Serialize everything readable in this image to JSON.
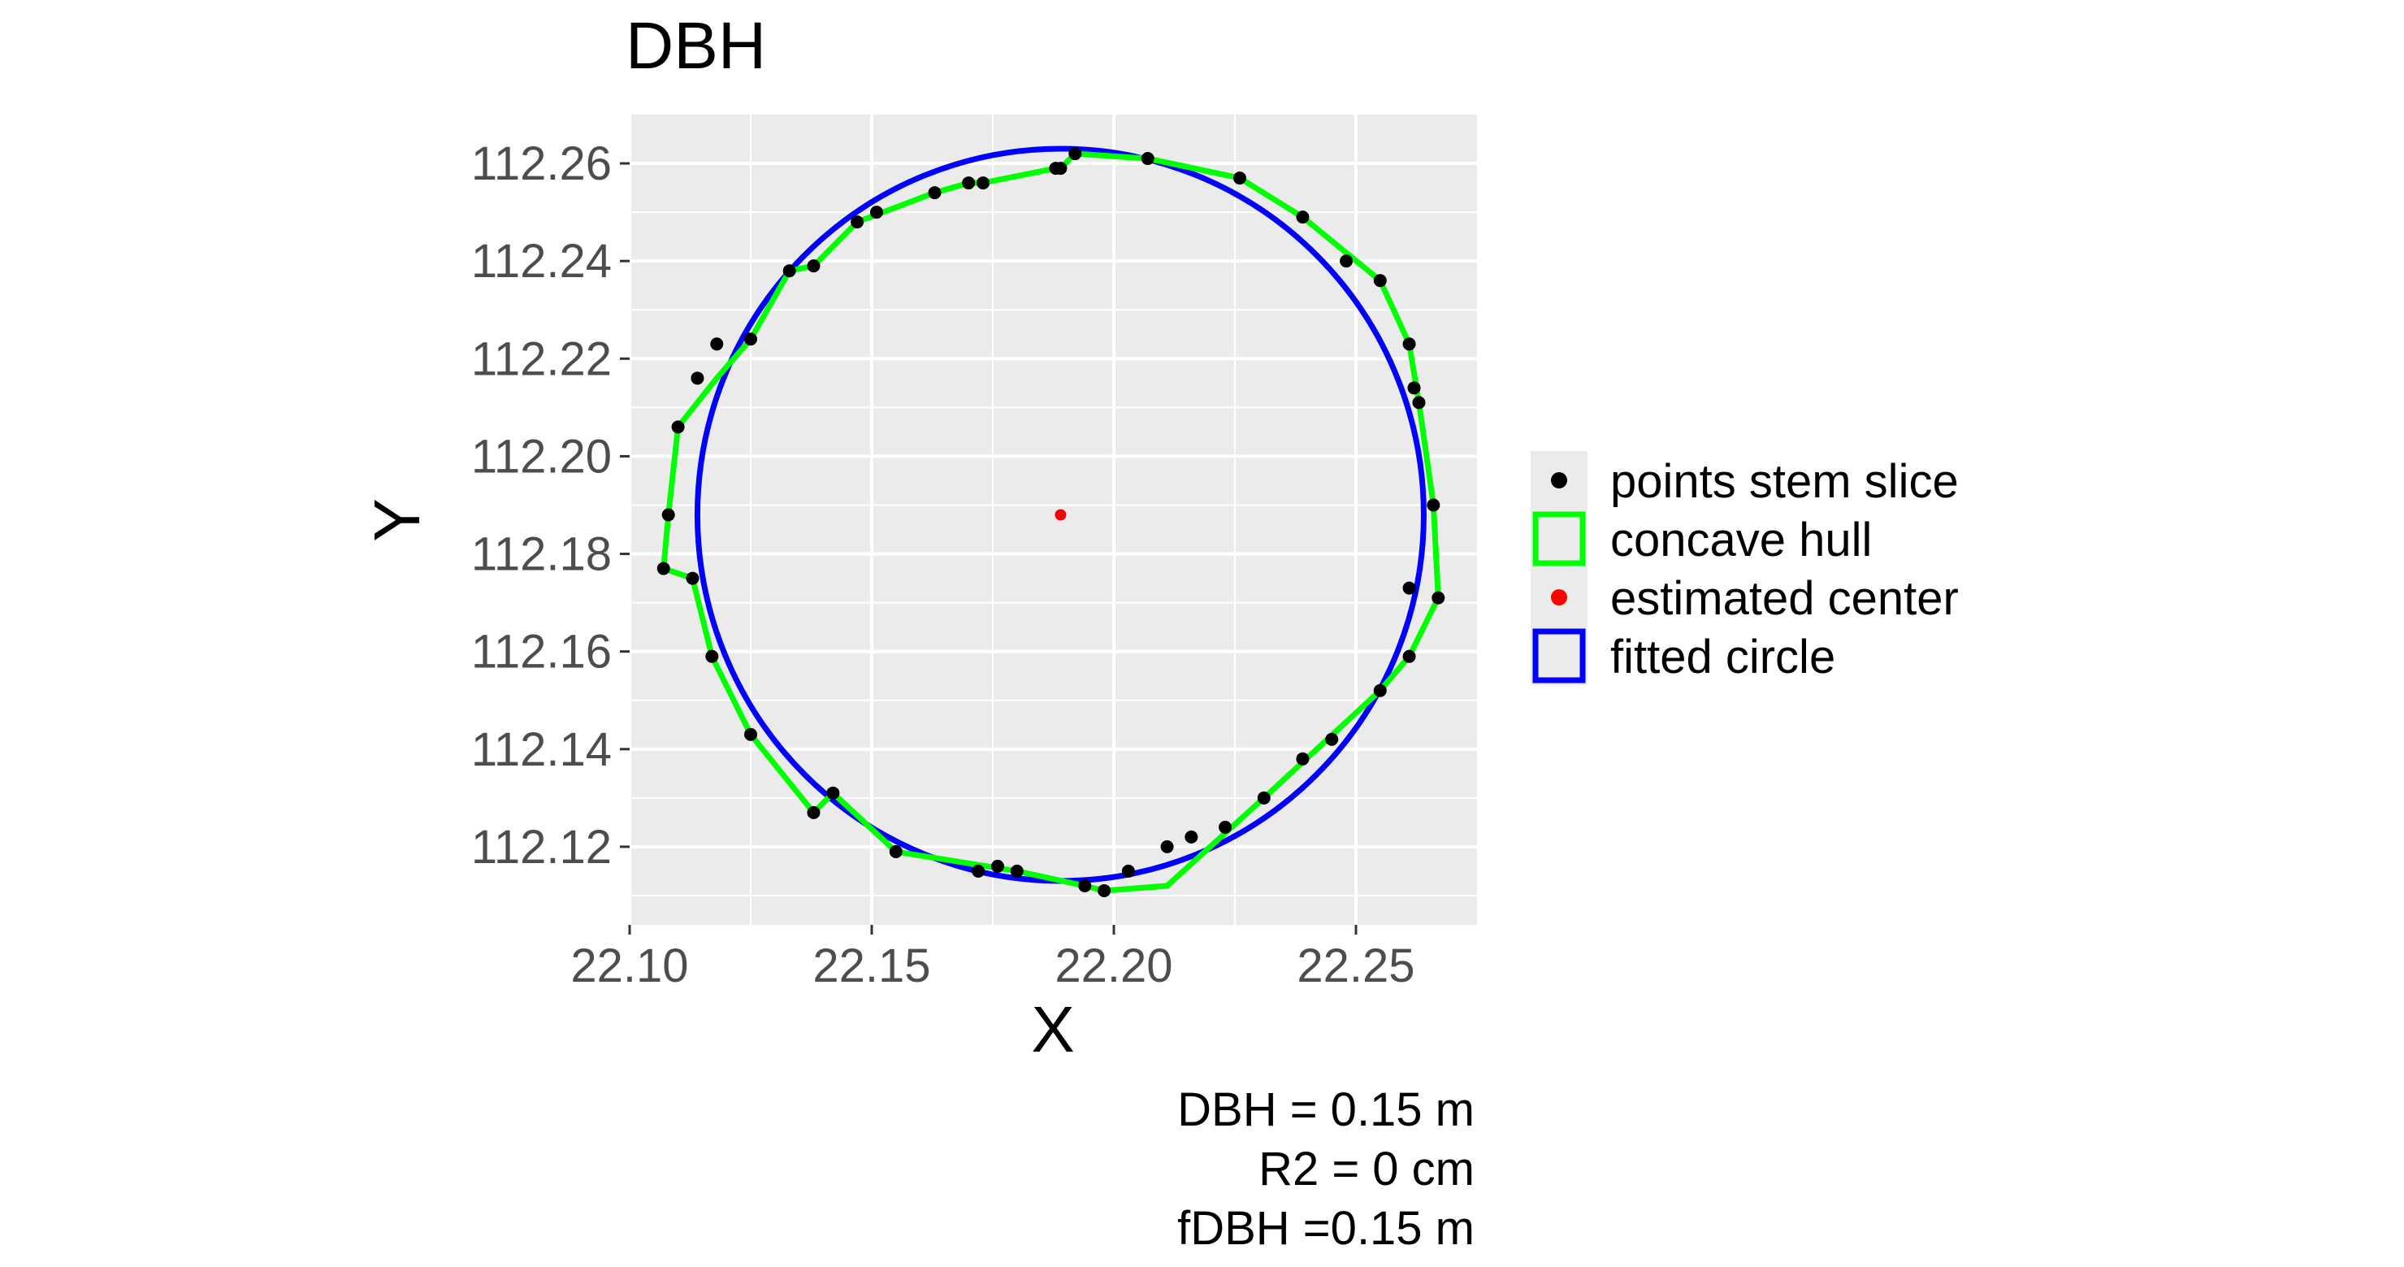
{
  "chart_data": {
    "type": "scatter",
    "title": "DBH",
    "xlabel": "X",
    "ylabel": "Y",
    "xlim": [
      22.1,
      22.275
    ],
    "ylim": [
      112.104,
      112.27
    ],
    "x_ticks": [
      22.1,
      22.15,
      22.2,
      22.25
    ],
    "x_tick_labels": [
      "22.10",
      "22.15",
      "22.20",
      "22.25"
    ],
    "y_ticks": [
      112.12,
      112.14,
      112.16,
      112.18,
      112.2,
      112.22,
      112.24,
      112.26
    ],
    "y_tick_labels": [
      "112.12",
      "112.14",
      "112.16",
      "112.18",
      "112.20",
      "112.22",
      "112.24",
      "112.26"
    ],
    "grid": true,
    "panel_background": "#EBEBEB",
    "legend_position": "right",
    "legend": [
      {
        "label": "points stem slice",
        "key": "point",
        "color": "#000000"
      },
      {
        "label": "concave hull",
        "key": "box",
        "color": "#00FF00"
      },
      {
        "label": "estimated center",
        "key": "point",
        "color": "#FF0000"
      },
      {
        "label": "fitted circle",
        "key": "box",
        "color": "#0000FF"
      }
    ],
    "points_stem_slice": {
      "color": "#000000",
      "x": [
        22.189,
        22.192,
        22.207,
        22.226,
        22.239,
        22.248,
        22.255,
        22.261,
        22.262,
        22.263,
        22.266,
        22.261,
        22.267,
        22.261,
        22.255,
        22.245,
        22.239,
        22.231,
        22.223,
        22.216,
        22.211,
        22.203,
        22.198,
        22.194,
        22.18,
        22.176,
        22.172,
        22.155,
        22.142,
        22.138,
        22.125,
        22.117,
        22.113,
        22.107,
        22.108,
        22.11,
        22.114,
        22.118,
        22.125,
        22.133,
        22.138,
        22.147,
        22.151,
        22.163,
        22.17,
        22.173,
        22.188
      ],
      "y": [
        112.259,
        112.262,
        112.261,
        112.257,
        112.249,
        112.24,
        112.236,
        112.223,
        112.214,
        112.211,
        112.19,
        112.173,
        112.171,
        112.159,
        112.152,
        112.142,
        112.138,
        112.13,
        112.124,
        112.122,
        112.12,
        112.115,
        112.111,
        112.112,
        112.115,
        112.116,
        112.115,
        112.119,
        112.131,
        112.127,
        112.143,
        112.159,
        112.175,
        112.177,
        112.188,
        112.206,
        112.216,
        112.223,
        112.224,
        112.238,
        112.239,
        112.248,
        112.25,
        112.254,
        112.256,
        112.256,
        112.259
      ]
    },
    "concave_hull": {
      "color": "#00FF00",
      "x": [
        22.189,
        22.192,
        22.207,
        22.226,
        22.239,
        22.255,
        22.261,
        22.263,
        22.266,
        22.267,
        22.261,
        22.255,
        22.231,
        22.211,
        22.198,
        22.194,
        22.18,
        22.155,
        22.142,
        22.138,
        22.125,
        22.117,
        22.113,
        22.107,
        22.108,
        22.11,
        22.118,
        22.125,
        22.133,
        22.138,
        22.147,
        22.163,
        22.17,
        22.173,
        22.188,
        22.189
      ],
      "y": [
        112.259,
        112.262,
        112.261,
        112.257,
        112.249,
        112.236,
        112.223,
        112.211,
        112.19,
        112.171,
        112.159,
        112.152,
        112.13,
        112.112,
        112.111,
        112.112,
        112.115,
        112.119,
        112.131,
        112.127,
        112.143,
        112.159,
        112.175,
        112.177,
        112.188,
        112.206,
        112.216,
        112.224,
        112.238,
        112.239,
        112.248,
        112.254,
        112.256,
        112.256,
        112.259,
        112.259
      ]
    },
    "estimated_center": {
      "x": 22.189,
      "y": 112.188,
      "color": "#FF0000"
    },
    "fitted_circle": {
      "cx": 22.189,
      "cy": 112.188,
      "r": 0.075,
      "color": "#0000FF"
    },
    "annotations": [
      "DBH = 0.15 m",
      "R2 = 0 cm",
      "fDBH =0.15 m"
    ]
  }
}
